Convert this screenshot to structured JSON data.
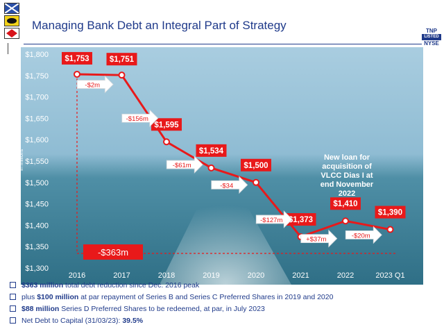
{
  "header": {
    "title": "Managing Bank Debt an Integral Part of Strategy",
    "logo_line1": "TNP",
    "logo_line2": "LISTED",
    "logo_line3": "NYSE"
  },
  "chart_data": {
    "type": "line",
    "title": "",
    "xlabel": "",
    "ylabel": "In millions",
    "ylim": [
      1300,
      1800
    ],
    "yticks": [
      "$1,300",
      "$1,350",
      "$1,400",
      "$1,450",
      "$1,500",
      "$1,550",
      "$1,600",
      "$1,650",
      "$1,700",
      "$1,750",
      "$1,800"
    ],
    "categories": [
      "2016",
      "2017",
      "2018",
      "2019",
      "2020",
      "2021",
      "2022",
      "2023 Q1"
    ],
    "series": [
      {
        "values": [
          1753,
          1751,
          1595,
          1534,
          1500,
          1373,
          1410,
          1390
        ]
      }
    ],
    "data_labels": [
      "$1,753",
      "$1,751",
      "$1,595",
      "$1,534",
      "$1,500",
      "$1,373",
      "$1,410",
      "$1,390"
    ],
    "changes": [
      "-$2m",
      "-$156m",
      "-$61m",
      "-$34",
      "-$127m",
      "+$37m",
      "-$20m"
    ],
    "total_reduction": "-$363m",
    "annotation": "New loan for acquisition of VLCC Dias I at end November 2022",
    "colors": {
      "line": "#e8191a",
      "label_bg": "#e8191a",
      "arrow_fill": "#ffffff",
      "sea_top": "#8fbcd3",
      "sea_bottom": "#2f6f86"
    }
  },
  "bullets": [
    {
      "bold": "$363 million",
      "text": " total debt reduction since Dec. 2016 peak"
    },
    {
      "pre": "plus ",
      "bold": "$100 million",
      "text": " at par repayment of Series B and Series C Preferred Shares in 2019 and 2020"
    },
    {
      "bold": "$88 million",
      "text": " Series D Preferred Shares to be redeemed, at par, in July 2023"
    },
    {
      "pre": "Net Debt to Capital (31/03/23): ",
      "bold": "39.5%",
      "text": ""
    }
  ]
}
